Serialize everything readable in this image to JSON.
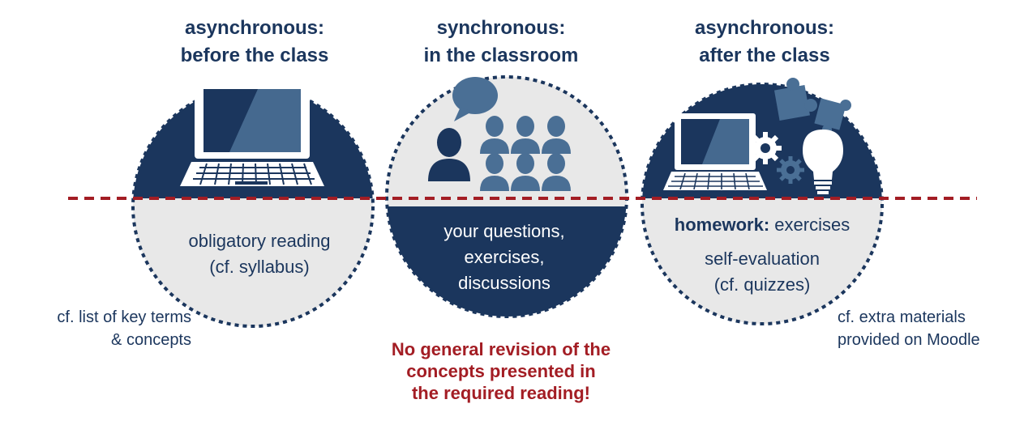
{
  "headings": {
    "left": [
      "asynchronous:",
      "before the class"
    ],
    "middle": [
      "synchronous:",
      "in the classroom"
    ],
    "right": [
      "asynchronous:",
      "after the class"
    ]
  },
  "circles": {
    "left": {
      "lines": [
        "obligatory reading",
        "(cf. syllabus)"
      ]
    },
    "middle": {
      "lines": [
        "your questions,",
        "exercises,",
        "discussions"
      ]
    },
    "right": {
      "homework_label": "homework:",
      "homework_text": " exercises",
      "lines": [
        "self-evaluation",
        "(cf. quizzes)"
      ]
    }
  },
  "side_notes": {
    "left": [
      "cf. list of key terms",
      "& concepts"
    ],
    "right": [
      "cf. extra materials",
      "provided on Moodle"
    ]
  },
  "warning": [
    "No general revision of the",
    "concepts presented in",
    "the required reading!"
  ],
  "colors": {
    "navy": "#1b365d",
    "light_gray": "#e8e8e8",
    "dashed_red": "#a31d24",
    "icon_blue": "#4a6f95",
    "icon_dark": "#1b365d"
  },
  "icons": [
    "laptop-icon",
    "speech-bubble-icon",
    "teacher-icon",
    "students-icon",
    "laptop-icon",
    "gear-icon",
    "puzzle-icon",
    "lightbulb-icon"
  ]
}
